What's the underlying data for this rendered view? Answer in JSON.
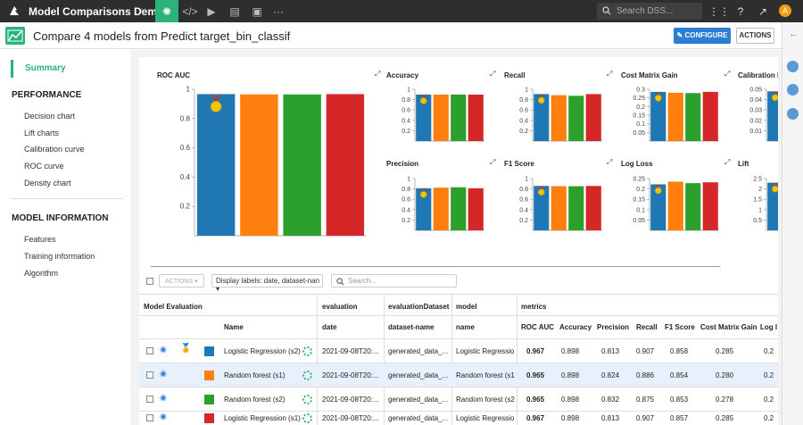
{
  "app": {
    "title": "Model Comparisons Demo",
    "search_placeholder": "Search DSS...",
    "avatar_letter": "A"
  },
  "header": {
    "title": "Compare 4 models from Predict target_bin_classif",
    "configure_label": "CONFIGURE",
    "actions_label": "ACTIONS"
  },
  "sidebar": {
    "summary": "Summary",
    "performance_heading": "PERFORMANCE",
    "performance_items": [
      "Decision chart",
      "Lift charts",
      "Calibration curve",
      "ROC curve",
      "Density chart"
    ],
    "model_info_heading": "MODEL INFORMATION",
    "model_info_items": [
      "Features",
      "Training information",
      "Algorithm"
    ]
  },
  "colors": {
    "accent": "#2ab37b",
    "blue": "#1f77b4",
    "orange": "#ff7f0e",
    "green": "#2ca02c",
    "red": "#d62728",
    "primary_button": "#2a7fd4"
  },
  "chart_data": [
    {
      "type": "bar",
      "title": "ROC AUC",
      "values": [
        0.967,
        0.965,
        0.965,
        0.967
      ],
      "ylim": [
        0,
        1
      ],
      "yticks": [
        0.2,
        0.4,
        0.6,
        0.8,
        1
      ]
    },
    {
      "type": "bar",
      "title": "Accuracy",
      "values": [
        0.898,
        0.898,
        0.898,
        0.898
      ],
      "ylim": [
        0,
        1
      ],
      "yticks": [
        0.2,
        0.4,
        0.6,
        0.8,
        1
      ]
    },
    {
      "type": "bar",
      "title": "Recall",
      "values": [
        0.907,
        0.886,
        0.875,
        0.907
      ],
      "ylim": [
        0,
        1
      ],
      "yticks": [
        0.2,
        0.4,
        0.6,
        0.8,
        1
      ]
    },
    {
      "type": "bar",
      "title": "Cost Matrix Gain",
      "values": [
        0.285,
        0.28,
        0.278,
        0.285
      ],
      "ylim": [
        0,
        0.3
      ],
      "yticks": [
        0.05,
        0.1,
        0.15,
        0.2,
        0.25,
        0.3
      ]
    },
    {
      "type": "bar",
      "title": "Calibration Los",
      "values": [
        0.048,
        0.043,
        0.042,
        0.043
      ],
      "ylim": [
        0,
        0.05
      ],
      "yticks": [
        0.01,
        0.02,
        0.03,
        0.04,
        0.05
      ]
    },
    {
      "type": "bar",
      "title": "Precision",
      "values": [
        0.813,
        0.824,
        0.832,
        0.813
      ],
      "ylim": [
        0,
        1
      ],
      "yticks": [
        0.2,
        0.4,
        0.6,
        0.8,
        1
      ]
    },
    {
      "type": "bar",
      "title": "F1 Score",
      "values": [
        0.858,
        0.854,
        0.853,
        0.857
      ],
      "ylim": [
        0,
        1
      ],
      "yticks": [
        0.2,
        0.4,
        0.6,
        0.8,
        1
      ]
    },
    {
      "type": "bar",
      "title": "Log Loss",
      "values": [
        0.222,
        0.235,
        0.228,
        0.232
      ],
      "ylim": [
        0,
        0.25
      ],
      "yticks": [
        0.05,
        0.1,
        0.15,
        0.2,
        0.25
      ]
    },
    {
      "type": "bar",
      "title": "Lift",
      "values": [
        2.3,
        2.3,
        2.3,
        2.3
      ],
      "ylim": [
        0,
        2.5
      ],
      "yticks": [
        0.5,
        1,
        1.5,
        2,
        2.5
      ]
    }
  ],
  "table": {
    "actions_label": "ACTIONS",
    "display_labels": "Display labels: date, dataset-nan",
    "search_placeholder": "Search...",
    "groups": {
      "model_evaluation": "Model Evaluation",
      "evaluation": "evaluation",
      "evaluation_dataset": "evaluationDataset",
      "model": "model",
      "metrics": "metrics"
    },
    "columns": {
      "name": "Name",
      "date": "date",
      "dataset": "dataset-name",
      "model_name": "name",
      "roc_auc": "ROC AUC",
      "accuracy": "Accuracy",
      "precision": "Precision",
      "recall": "Recall",
      "f1": "F1 Score",
      "cost": "Cost Matrix Gain",
      "logloss": "Log l"
    },
    "rows": [
      {
        "name": "Logistic Regression (s2)",
        "date": "2021-09-08T20:...",
        "dataset": "generated_data_...",
        "model": "Logistic Regressio...",
        "roc_auc": "0.967",
        "accuracy": "0.898",
        "precision": "0.813",
        "recall": "0.907",
        "f1": "0.858",
        "cost": "0.285",
        "logloss": "0.2"
      },
      {
        "name": "Random forest (s1)",
        "date": "2021-09-08T20:...",
        "dataset": "generated_data_...",
        "model": "Random forest (s1)",
        "roc_auc": "0.965",
        "accuracy": "0.898",
        "precision": "0.824",
        "recall": "0.886",
        "f1": "0.854",
        "cost": "0.280",
        "logloss": "0.2"
      },
      {
        "name": "Random forest (s2)",
        "date": "2021-09-08T20:...",
        "dataset": "generated_data_...",
        "model": "Random forest (s2)",
        "roc_auc": "0.965",
        "accuracy": "0.898",
        "precision": "0.832",
        "recall": "0.875",
        "f1": "0.853",
        "cost": "0.278",
        "logloss": "0.2"
      },
      {
        "name": "Logistic Regression (s1)",
        "date": "2021-09-08T20:...",
        "dataset": "generated_data_...",
        "model": "Logistic Regressio...",
        "roc_auc": "0.967",
        "accuracy": "0.898",
        "precision": "0.813",
        "recall": "0.907",
        "f1": "0.857",
        "cost": "0.285",
        "logloss": "0.2"
      }
    ]
  }
}
